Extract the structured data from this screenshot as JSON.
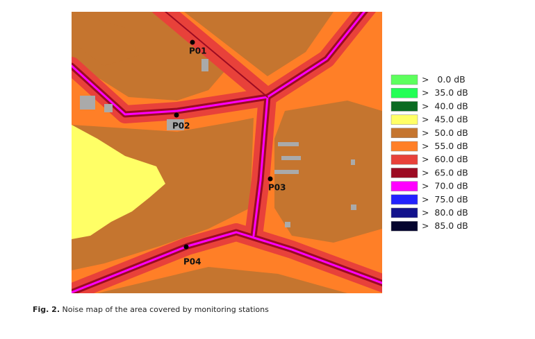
{
  "figure": {
    "stations": [
      "P01",
      "P02",
      "P03",
      "P04"
    ],
    "legend": [
      {
        "color": "#5dff5d",
        "label": ">   0.0 dB"
      },
      {
        "color": "#22ff55",
        "label": ">  35.0 dB"
      },
      {
        "color": "#0a6b22",
        "label": ">  40.0 dB"
      },
      {
        "color": "#ffff66",
        "label": ">  45.0 dB"
      },
      {
        "color": "#c5752f",
        "label": ">  50.0 dB"
      },
      {
        "color": "#ff7f27",
        "label": ">  55.0 dB"
      },
      {
        "color": "#e8413a",
        "label": ">  60.0 dB"
      },
      {
        "color": "#9c0b22",
        "label": ">  65.0 dB"
      },
      {
        "color": "#ff00ff",
        "label": ">  70.0 dB"
      },
      {
        "color": "#2222ff",
        "label": ">  75.0 dB"
      },
      {
        "color": "#12128c",
        "label": ">  80.0 dB"
      },
      {
        "color": "#05052e",
        "label": ">  85.0 dB"
      }
    ],
    "caption_label": "Fig. 2.",
    "caption_text": "Noise map of the area covered by monitoring stations"
  }
}
